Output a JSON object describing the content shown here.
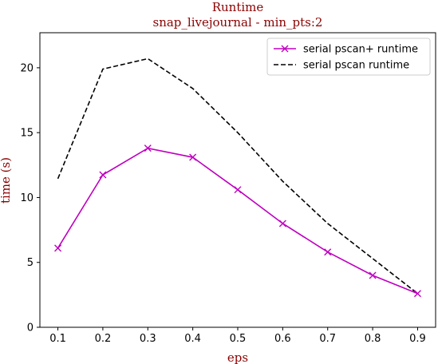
{
  "chart_data": {
    "type": "line",
    "title": "Runtime",
    "subtitle": "snap_livejournal - min_pts:2",
    "xlabel": "eps",
    "ylabel": "time (s)",
    "x": [
      0.1,
      0.2,
      0.3,
      0.4,
      0.5,
      0.6,
      0.7,
      0.8,
      0.9
    ],
    "xlim": [
      0.06,
      0.94
    ],
    "ylim": [
      0,
      22.7
    ],
    "xticks": [
      "0.1",
      "0.2",
      "0.3",
      "0.4",
      "0.5",
      "0.6",
      "0.7",
      "0.8",
      "0.9"
    ],
    "yticks": [
      "0",
      "5",
      "10",
      "15",
      "20"
    ],
    "grid": false,
    "legend_position": "top-right",
    "series": [
      {
        "name": "serial pscan+ runtime",
        "color": "#bf00bf",
        "line_style": "solid",
        "marker": "x",
        "values": [
          6.1,
          11.75,
          13.8,
          13.1,
          10.6,
          8.0,
          5.8,
          4.0,
          2.6
        ]
      },
      {
        "name": "serial pscan runtime",
        "color": "#000000",
        "line_style": "dashed",
        "marker": "none",
        "values": [
          11.45,
          19.9,
          20.7,
          18.4,
          15.0,
          11.25,
          8.0,
          5.3,
          2.6
        ]
      }
    ]
  }
}
